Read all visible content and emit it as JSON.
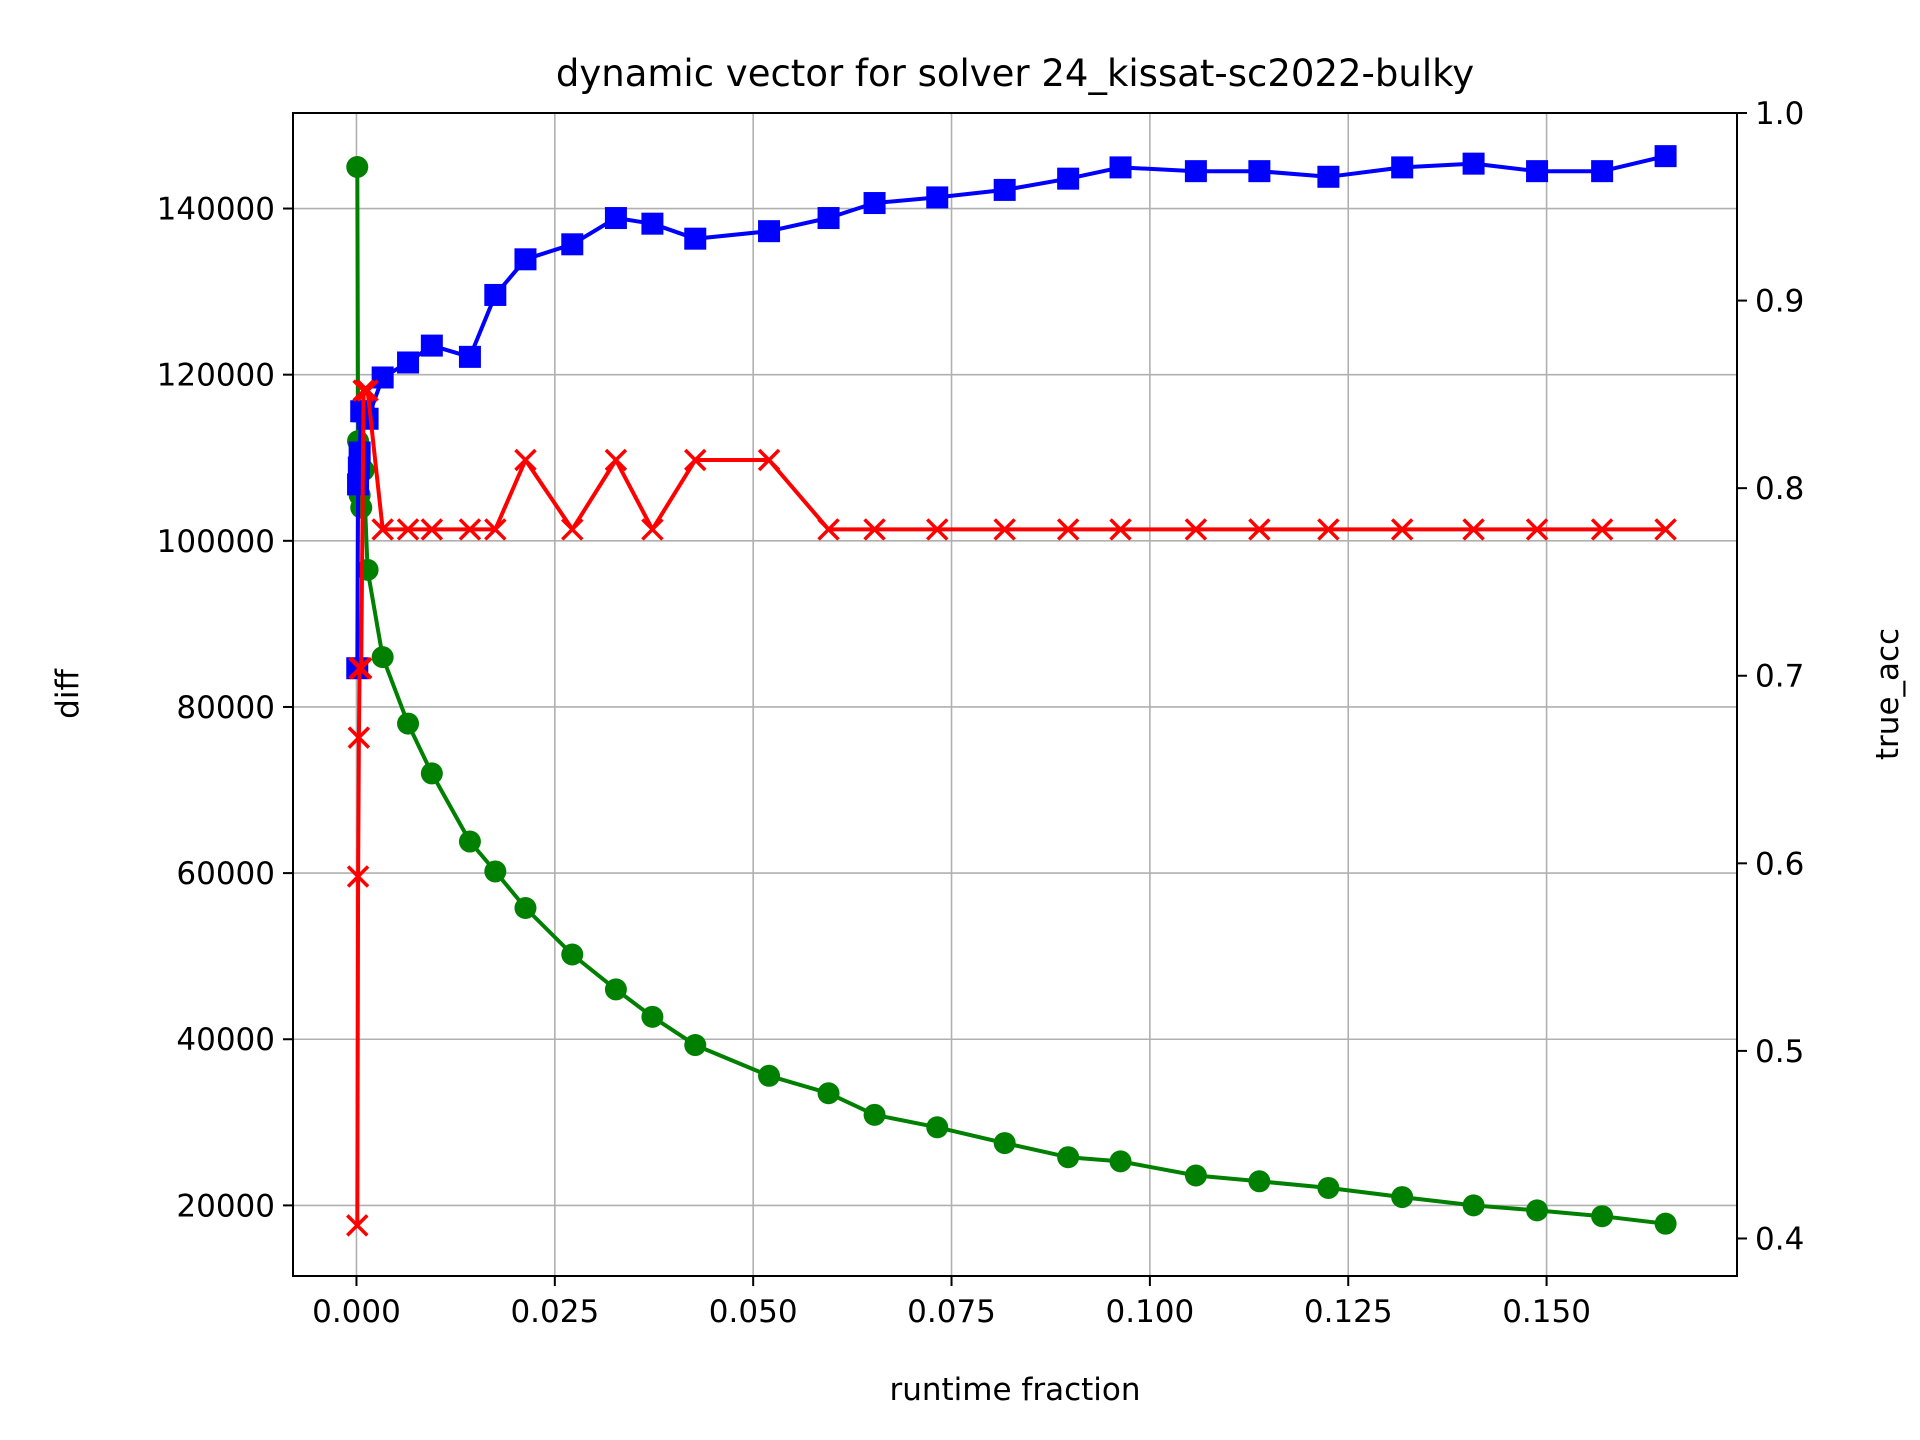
{
  "chart_data": {
    "type": "line",
    "title": "dynamic vector for solver 24_kissat-sc2022-bulky",
    "xlabel": "runtime fraction",
    "ylabel_left": "diff",
    "ylabel_right": "true_acc",
    "grid": true,
    "xlim": [
      -0.008,
      0.174
    ],
    "ylim_left": [
      11500,
      151500
    ],
    "ylim_right": [
      0.38,
      1.0
    ],
    "x_ticks": [
      0.0,
      0.025,
      0.05,
      0.075,
      0.1,
      0.125,
      0.15
    ],
    "x_tick_labels": [
      "0.000",
      "0.025",
      "0.050",
      "0.075",
      "0.100",
      "0.125",
      "0.150"
    ],
    "y_left_ticks": [
      20000,
      40000,
      60000,
      80000,
      100000,
      120000,
      140000
    ],
    "y_left_tick_labels": [
      "20000",
      "40000",
      "60000",
      "80000",
      "100000",
      "120000",
      "140000"
    ],
    "y_right_ticks": [
      0.4,
      0.5,
      0.6,
      0.7,
      0.8,
      0.9,
      1.0
    ],
    "y_right_tick_labels": [
      "0.4",
      "0.5",
      "0.6",
      "0.7",
      "0.8",
      "0.9",
      "1.0"
    ],
    "colors": {
      "diff": "#008000",
      "acc": "#0000ff",
      "true_acc": "#ff0000"
    },
    "series": [
      {
        "axis": "left",
        "color": "#008000",
        "marker": "circle",
        "x": [
          0.0001,
          0.0002,
          0.0003,
          0.0004,
          0.0006,
          0.0009,
          0.0014,
          0.0033,
          0.0065,
          0.0095,
          0.0143,
          0.0175,
          0.0213,
          0.0272,
          0.0327,
          0.0373,
          0.0427,
          0.052,
          0.0595,
          0.0653,
          0.0732,
          0.0817,
          0.0897,
          0.0963,
          0.1058,
          0.1138,
          0.1225,
          0.1318,
          0.1408,
          0.1488,
          0.157,
          0.165
        ],
        "values": [
          145000,
          112000,
          108000,
          105500,
          104000,
          108500,
          96500,
          86000,
          78000,
          72000,
          63800,
          60200,
          55800,
          50200,
          46000,
          42700,
          39300,
          35600,
          33500,
          30900,
          29400,
          27500,
          25800,
          25300,
          23600,
          22900,
          22100,
          21000,
          20000,
          19400,
          18700,
          17800
        ]
      },
      {
        "axis": "right",
        "color": "#0000ff",
        "marker": "square",
        "x": [
          0.0001,
          0.0002,
          0.0003,
          0.0004,
          0.0006,
          0.0009,
          0.0014,
          0.0033,
          0.0065,
          0.0095,
          0.0143,
          0.0175,
          0.0213,
          0.0272,
          0.0327,
          0.0373,
          0.0427,
          0.052,
          0.0595,
          0.0653,
          0.0732,
          0.0817,
          0.0897,
          0.0963,
          0.1058,
          0.1138,
          0.1225,
          0.1318,
          0.1408,
          0.1488,
          0.157,
          0.165
        ],
        "values": [
          0.704,
          0.802,
          0.811,
          0.819,
          0.841,
          0.841,
          0.837,
          0.859,
          0.867,
          0.876,
          0.87,
          0.903,
          0.922,
          0.93,
          0.944,
          0.941,
          0.933,
          0.937,
          0.944,
          0.952,
          0.955,
          0.959,
          0.965,
          0.971,
          0.969,
          0.969,
          0.966,
          0.971,
          0.973,
          0.969,
          0.969,
          0.977
        ]
      },
      {
        "axis": "right",
        "color": "#ff0000",
        "marker": "x",
        "x": [
          0.0001,
          0.0002,
          0.0003,
          0.0004,
          0.0006,
          0.0009,
          0.0014,
          0.0033,
          0.0065,
          0.0095,
          0.0143,
          0.0175,
          0.0213,
          0.0272,
          0.0327,
          0.0373,
          0.0427,
          0.052,
          0.0595,
          0.0653,
          0.0732,
          0.0817,
          0.0897,
          0.0963,
          0.1058,
          0.1138,
          0.1225,
          0.1318,
          0.1408,
          0.1488,
          0.157,
          0.165
        ],
        "values": [
          0.407,
          0.593,
          0.667,
          0.704,
          0.704,
          0.852,
          0.852,
          0.778,
          0.778,
          0.778,
          0.778,
          0.778,
          0.815,
          0.778,
          0.815,
          0.778,
          0.815,
          0.815,
          0.778,
          0.778,
          0.778,
          0.778,
          0.778,
          0.778,
          0.778,
          0.778,
          0.778,
          0.778,
          0.778,
          0.778,
          0.778,
          0.778
        ]
      }
    ]
  }
}
